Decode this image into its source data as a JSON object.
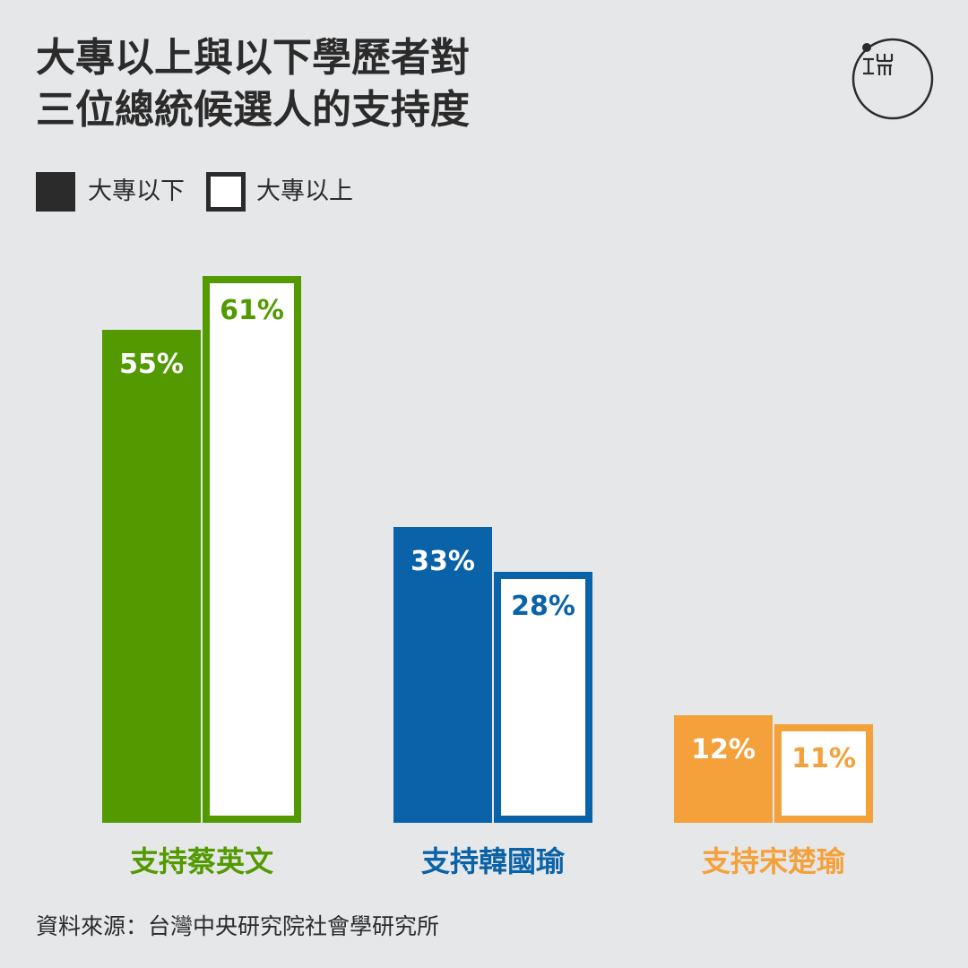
{
  "title_lines": [
    "大專以上與以下學歷者對",
    "三位總統候選人的支持度"
  ],
  "legend": [
    {
      "label": "大專以下",
      "style": "filled"
    },
    {
      "label": "大專以上",
      "style": "outline"
    }
  ],
  "source": "資料來源：台灣中央研究院社會學研究所",
  "colors": {
    "background": "#e6e7e9",
    "text": "#2b2b2b",
    "legend_dark": "#2b2b2b"
  },
  "logo": {
    "icon": "initium-logo-icon"
  },
  "chart_data": {
    "type": "bar",
    "categories": [
      "支持蔡英文",
      "支持韓國瑜",
      "支持宋楚瑜"
    ],
    "category_colors": [
      "#529a00",
      "#0a63a8",
      "#f4a13b"
    ],
    "series": [
      {
        "name": "大專以下",
        "values": [
          55,
          33,
          12
        ],
        "style": "filled"
      },
      {
        "name": "大專以上",
        "values": [
          61,
          28,
          11
        ],
        "style": "outline"
      }
    ],
    "data_labels": [
      [
        "55%",
        "33%",
        "12%"
      ],
      [
        "61%",
        "28%",
        "11%"
      ]
    ],
    "value_unit": "%",
    "ylim": [
      0,
      61
    ],
    "grid": false,
    "legend_position": "top-left",
    "xlabel": "",
    "ylabel": ""
  }
}
